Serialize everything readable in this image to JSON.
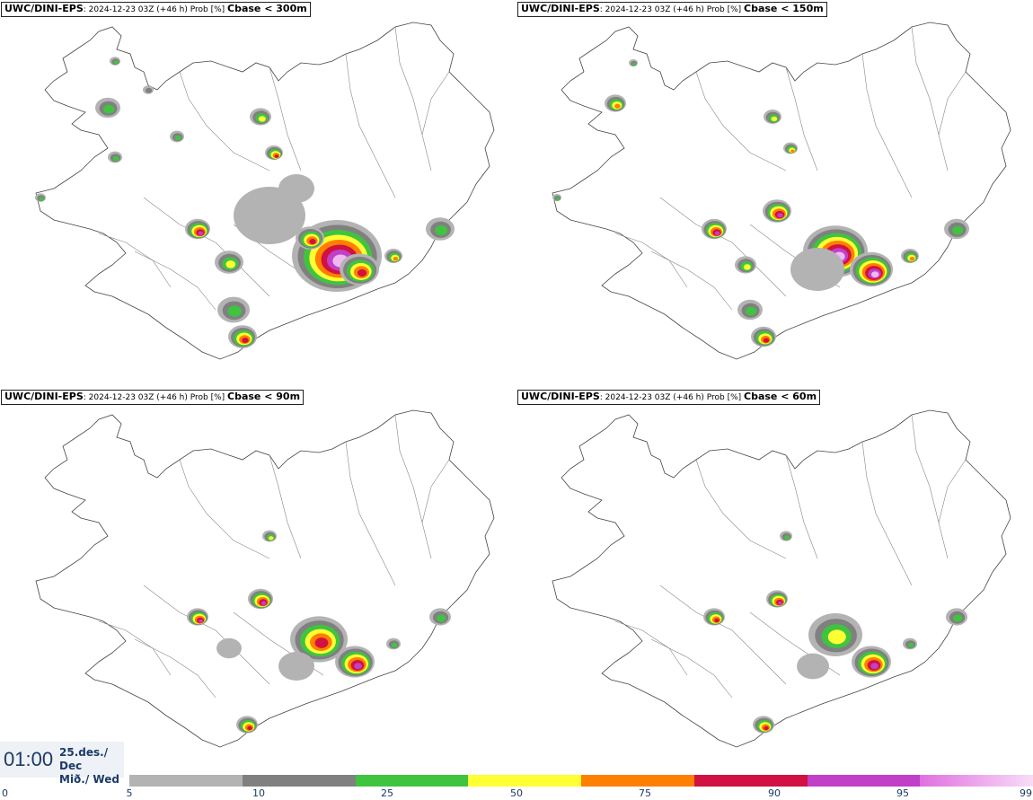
{
  "panels": [
    {
      "model": "UWC/DINI-EPS",
      "meta": ": 2024-12-23 03Z (+46 h) Prob [%] ",
      "cbase": "Cbase < 300m"
    },
    {
      "model": "UWC/DINI-EPS",
      "meta": ": 2024-12-23 03Z (+46 h) Prob [%] ",
      "cbase": "Cbase < 150m"
    },
    {
      "model": "UWC/DINI-EPS",
      "meta": ": 2024-12-23 03Z (+46 h) Prob [%] ",
      "cbase": "Cbase < 90m"
    },
    {
      "model": "UWC/DINI-EPS",
      "meta": ": 2024-12-23 03Z (+46 h) Prob [%] ",
      "cbase": "Cbase < 60m"
    }
  ],
  "valid_time": {
    "time": "01:00",
    "date_line1": "25.des./ Dec",
    "date_line2": "Mið./ Wed"
  },
  "legend": {
    "ticks": [
      "0",
      "5",
      "10",
      "25",
      "50",
      "75",
      "90",
      "95",
      "99"
    ],
    "colors": [
      "#b3b3b3",
      "#808080",
      "#3fc43f",
      "#ffff33",
      "#ff7f00",
      "#d11141",
      "#c040c8",
      "#f0b8f0"
    ]
  }
}
